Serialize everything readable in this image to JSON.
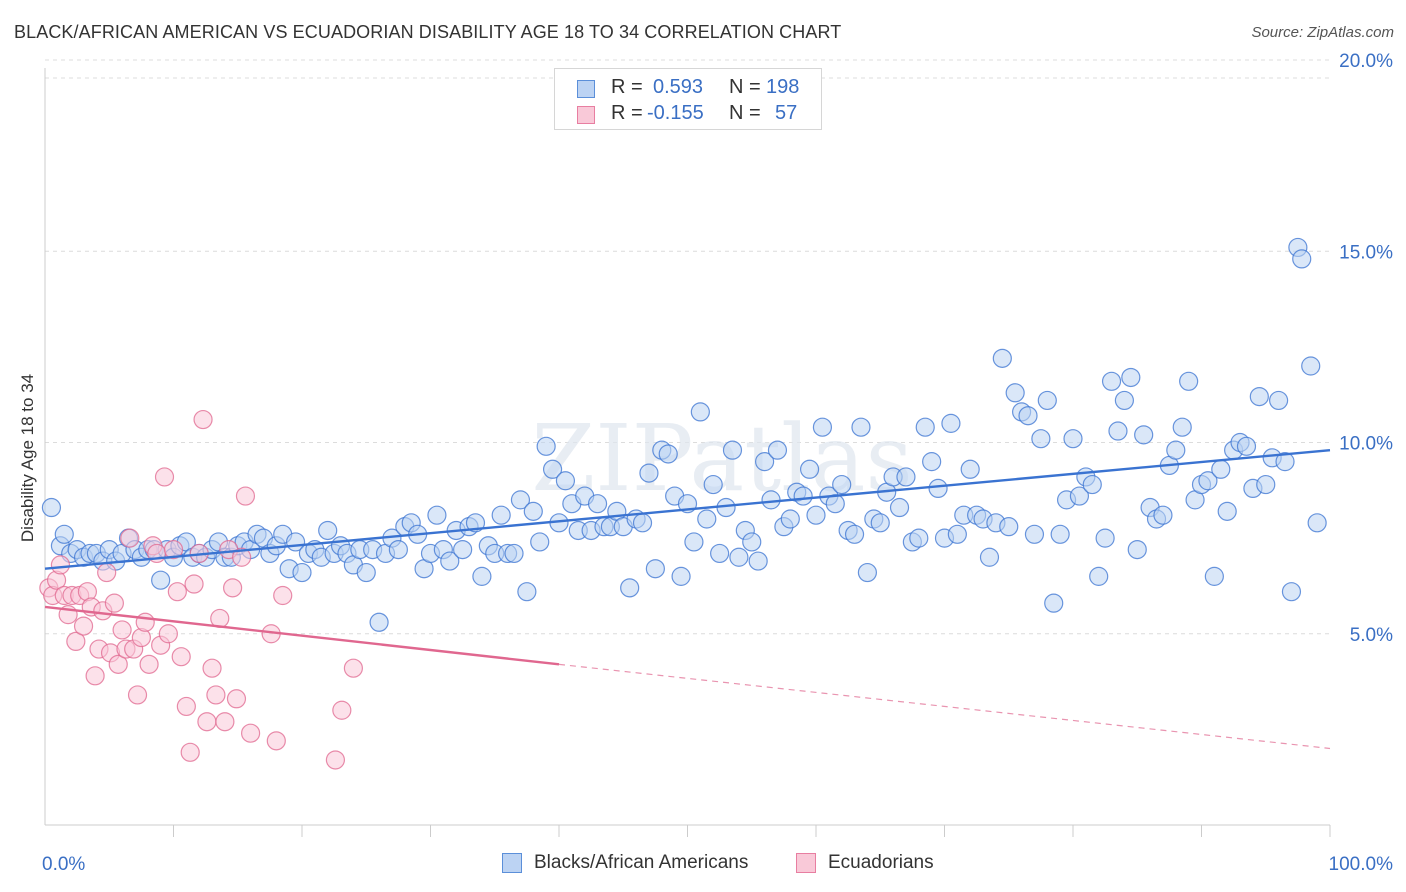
{
  "title": "BLACK/AFRICAN AMERICAN VS ECUADORIAN DISABILITY AGE 18 TO 34 CORRELATION CHART",
  "source": "Source: ZipAtlas.com",
  "watermark": "ZIPatlas",
  "stats": {
    "rows": [
      {
        "r_label": "R =",
        "r_value": "0.593",
        "n_label": "N =",
        "n_value": "198",
        "color": "#5b8fd9",
        "fill": "#bcd3f3"
      },
      {
        "r_label": "R =",
        "r_value": "-0.155",
        "n_label": "N =",
        "n_value": "57",
        "color": "#e87ea1",
        "fill": "#f9c9d8"
      }
    ]
  },
  "legend": [
    {
      "label": "Blacks/African Americans",
      "color": "#5b8fd9",
      "fill": "#bcd3f3"
    },
    {
      "label": "Ecuadorians",
      "color": "#e87ea1",
      "fill": "#f9c9d8"
    }
  ],
  "chart_data": {
    "type": "scatter",
    "ylabel": "Disability Age 18 to 34",
    "xlabel": "",
    "xlim": [
      0,
      100
    ],
    "ylim": [
      0,
      20.5
    ],
    "x_tick_labels": [
      "0.0%",
      "100.0%"
    ],
    "y_tick_labels": [
      "5.0%",
      "10.0%",
      "15.0%",
      "20.0%"
    ],
    "y_ticks": [
      5,
      10,
      15,
      20
    ],
    "grid": "horizontal dashed",
    "legend_position": "bottom-center",
    "series": [
      {
        "name": "Blacks/African Americans",
        "color": "#3a73d1",
        "fill": "#bcd3f3",
        "trend": {
          "x0": 0,
          "y0": 6.7,
          "x1": 100,
          "y1": 9.8
        },
        "points": [
          [
            0.5,
            8.3
          ],
          [
            1.2,
            7.3
          ],
          [
            1.5,
            7.6
          ],
          [
            2.0,
            7.1
          ],
          [
            2.5,
            7.2
          ],
          [
            3.0,
            7.0
          ],
          [
            3.5,
            7.1
          ],
          [
            4.0,
            7.1
          ],
          [
            4.5,
            6.9
          ],
          [
            5.0,
            7.2
          ],
          [
            5.5,
            6.9
          ],
          [
            6.0,
            7.1
          ],
          [
            6.5,
            7.5
          ],
          [
            7.0,
            7.2
          ],
          [
            7.5,
            7.0
          ],
          [
            8.0,
            7.2
          ],
          [
            8.5,
            7.2
          ],
          [
            9.0,
            6.4
          ],
          [
            9.5,
            7.2
          ],
          [
            10.0,
            7.0
          ],
          [
            10.5,
            7.3
          ],
          [
            11.0,
            7.4
          ],
          [
            11.5,
            7.0
          ],
          [
            12.0,
            7.1
          ],
          [
            12.5,
            7.0
          ],
          [
            13.0,
            7.2
          ],
          [
            13.5,
            7.4
          ],
          [
            14.0,
            7.0
          ],
          [
            14.5,
            7.0
          ],
          [
            15.0,
            7.3
          ],
          [
            15.5,
            7.4
          ],
          [
            16.0,
            7.2
          ],
          [
            16.5,
            7.6
          ],
          [
            17.0,
            7.5
          ],
          [
            17.5,
            7.1
          ],
          [
            18.0,
            7.3
          ],
          [
            18.5,
            7.6
          ],
          [
            19.0,
            6.7
          ],
          [
            19.5,
            7.4
          ],
          [
            20.0,
            6.6
          ],
          [
            20.5,
            7.1
          ],
          [
            21.0,
            7.2
          ],
          [
            21.5,
            7.0
          ],
          [
            22.0,
            7.7
          ],
          [
            22.5,
            7.1
          ],
          [
            23.0,
            7.3
          ],
          [
            23.5,
            7.1
          ],
          [
            24.0,
            6.8
          ],
          [
            24.5,
            7.2
          ],
          [
            25.0,
            6.6
          ],
          [
            25.5,
            7.2
          ],
          [
            26.0,
            5.3
          ],
          [
            26.5,
            7.1
          ],
          [
            27.0,
            7.5
          ],
          [
            27.5,
            7.2
          ],
          [
            28.0,
            7.8
          ],
          [
            28.5,
            7.9
          ],
          [
            29.0,
            7.6
          ],
          [
            29.5,
            6.7
          ],
          [
            30.0,
            7.1
          ],
          [
            30.5,
            8.1
          ],
          [
            31.0,
            7.2
          ],
          [
            31.5,
            6.9
          ],
          [
            32.0,
            7.7
          ],
          [
            32.5,
            7.2
          ],
          [
            33.0,
            7.8
          ],
          [
            33.5,
            7.9
          ],
          [
            34.0,
            6.5
          ],
          [
            34.5,
            7.3
          ],
          [
            35.0,
            7.1
          ],
          [
            35.5,
            8.1
          ],
          [
            36.0,
            7.1
          ],
          [
            36.5,
            7.1
          ],
          [
            37.0,
            8.5
          ],
          [
            37.5,
            6.1
          ],
          [
            38.0,
            8.2
          ],
          [
            38.5,
            7.4
          ],
          [
            39.0,
            9.9
          ],
          [
            39.5,
            9.3
          ],
          [
            40.0,
            7.9
          ],
          [
            40.5,
            9.0
          ],
          [
            41.0,
            8.4
          ],
          [
            41.5,
            7.7
          ],
          [
            42.0,
            8.6
          ],
          [
            42.5,
            7.7
          ],
          [
            43.0,
            8.4
          ],
          [
            43.5,
            7.8
          ],
          [
            44.0,
            7.8
          ],
          [
            44.5,
            8.2
          ],
          [
            45.0,
            7.8
          ],
          [
            45.5,
            6.2
          ],
          [
            46.0,
            8.0
          ],
          [
            46.5,
            7.9
          ],
          [
            47.0,
            9.2
          ],
          [
            47.5,
            6.7
          ],
          [
            48.0,
            9.8
          ],
          [
            48.5,
            9.7
          ],
          [
            49.0,
            8.6
          ],
          [
            49.5,
            6.5
          ],
          [
            50.0,
            8.4
          ],
          [
            50.5,
            7.4
          ],
          [
            51.0,
            10.8
          ],
          [
            51.5,
            8.0
          ],
          [
            52.0,
            8.9
          ],
          [
            52.5,
            7.1
          ],
          [
            53.0,
            8.3
          ],
          [
            53.5,
            9.8
          ],
          [
            54.0,
            7.0
          ],
          [
            54.5,
            7.7
          ],
          [
            55.0,
            7.4
          ],
          [
            55.5,
            6.9
          ],
          [
            56.0,
            9.5
          ],
          [
            56.5,
            8.5
          ],
          [
            57.0,
            9.8
          ],
          [
            57.5,
            7.8
          ],
          [
            58.0,
            8.0
          ],
          [
            58.5,
            8.7
          ],
          [
            59.0,
            8.6
          ],
          [
            59.5,
            9.3
          ],
          [
            60.0,
            8.1
          ],
          [
            60.5,
            10.4
          ],
          [
            61.0,
            8.6
          ],
          [
            61.5,
            8.4
          ],
          [
            62.0,
            8.9
          ],
          [
            62.5,
            7.7
          ],
          [
            63.0,
            7.6
          ],
          [
            63.5,
            10.4
          ],
          [
            64.0,
            6.6
          ],
          [
            64.5,
            8.0
          ],
          [
            65.0,
            7.9
          ],
          [
            65.5,
            8.7
          ],
          [
            66.0,
            9.1
          ],
          [
            66.5,
            8.3
          ],
          [
            67.0,
            9.1
          ],
          [
            67.5,
            7.4
          ],
          [
            68.0,
            7.5
          ],
          [
            68.5,
            10.4
          ],
          [
            69.0,
            9.5
          ],
          [
            69.5,
            8.8
          ],
          [
            70.0,
            7.5
          ],
          [
            70.5,
            10.5
          ],
          [
            71.0,
            7.6
          ],
          [
            71.5,
            8.1
          ],
          [
            72.0,
            9.3
          ],
          [
            72.5,
            8.1
          ],
          [
            73.0,
            8.0
          ],
          [
            73.5,
            7.0
          ],
          [
            74.0,
            7.9
          ],
          [
            74.5,
            12.2
          ],
          [
            75.0,
            7.8
          ],
          [
            75.5,
            11.3
          ],
          [
            76.0,
            10.8
          ],
          [
            76.5,
            10.7
          ],
          [
            77.0,
            7.6
          ],
          [
            77.5,
            10.1
          ],
          [
            78.0,
            11.1
          ],
          [
            78.5,
            5.8
          ],
          [
            79.0,
            7.6
          ],
          [
            79.5,
            8.5
          ],
          [
            80.0,
            10.1
          ],
          [
            80.5,
            8.6
          ],
          [
            81.0,
            9.1
          ],
          [
            81.5,
            8.9
          ],
          [
            82.0,
            6.5
          ],
          [
            82.5,
            7.5
          ],
          [
            83.0,
            11.6
          ],
          [
            83.5,
            10.3
          ],
          [
            84.0,
            11.1
          ],
          [
            84.5,
            11.7
          ],
          [
            85.0,
            7.2
          ],
          [
            85.5,
            10.2
          ],
          [
            86.0,
            8.3
          ],
          [
            86.5,
            8.0
          ],
          [
            87.0,
            8.1
          ],
          [
            87.5,
            9.4
          ],
          [
            88.0,
            9.8
          ],
          [
            88.5,
            10.4
          ],
          [
            89.0,
            11.6
          ],
          [
            89.5,
            8.5
          ],
          [
            90.0,
            8.9
          ],
          [
            90.5,
            9.0
          ],
          [
            91.0,
            6.5
          ],
          [
            91.5,
            9.3
          ],
          [
            92.0,
            8.2
          ],
          [
            92.5,
            9.8
          ],
          [
            93.0,
            10.0
          ],
          [
            93.5,
            9.9
          ],
          [
            94.0,
            8.8
          ],
          [
            94.5,
            11.2
          ],
          [
            95.0,
            8.9
          ],
          [
            95.5,
            9.6
          ],
          [
            96.0,
            11.1
          ],
          [
            96.5,
            9.5
          ],
          [
            97.0,
            6.1
          ],
          [
            97.5,
            15.1
          ],
          [
            97.8,
            14.8
          ],
          [
            98.5,
            12.0
          ],
          [
            99.0,
            7.9
          ]
        ]
      },
      {
        "name": "Ecuadorians",
        "color": "#e0678f",
        "fill": "#f9c9d8",
        "trend": {
          "x0": 0,
          "y0": 5.7,
          "x1": 40,
          "y1": 4.2
        },
        "trend_extended": {
          "x0": 40,
          "y0": 4.2,
          "x1": 100,
          "y1": 2.0
        },
        "points": [
          [
            0.3,
            6.2
          ],
          [
            0.6,
            6.0
          ],
          [
            0.9,
            6.4
          ],
          [
            1.2,
            6.8
          ],
          [
            1.5,
            6.0
          ],
          [
            1.8,
            5.5
          ],
          [
            2.1,
            6.0
          ],
          [
            2.4,
            4.8
          ],
          [
            2.7,
            6.0
          ],
          [
            3.0,
            5.2
          ],
          [
            3.3,
            6.1
          ],
          [
            3.6,
            5.7
          ],
          [
            3.9,
            3.9
          ],
          [
            4.2,
            4.6
          ],
          [
            4.5,
            5.6
          ],
          [
            4.8,
            6.6
          ],
          [
            5.1,
            4.5
          ],
          [
            5.4,
            5.8
          ],
          [
            5.7,
            4.2
          ],
          [
            6.0,
            5.1
          ],
          [
            6.3,
            4.6
          ],
          [
            6.6,
            7.5
          ],
          [
            6.9,
            4.6
          ],
          [
            7.2,
            3.4
          ],
          [
            7.5,
            4.9
          ],
          [
            7.8,
            5.3
          ],
          [
            8.1,
            4.2
          ],
          [
            8.4,
            7.3
          ],
          [
            8.7,
            7.1
          ],
          [
            9.0,
            4.7
          ],
          [
            9.3,
            9.1
          ],
          [
            9.6,
            5.0
          ],
          [
            10.0,
            7.2
          ],
          [
            10.3,
            6.1
          ],
          [
            10.6,
            4.4
          ],
          [
            11.0,
            3.1
          ],
          [
            11.3,
            1.9
          ],
          [
            11.6,
            6.3
          ],
          [
            12.0,
            7.1
          ],
          [
            12.3,
            10.6
          ],
          [
            12.6,
            2.7
          ],
          [
            13.0,
            4.1
          ],
          [
            13.3,
            3.4
          ],
          [
            13.6,
            5.4
          ],
          [
            14.0,
            2.7
          ],
          [
            14.3,
            7.2
          ],
          [
            14.6,
            6.2
          ],
          [
            14.9,
            3.3
          ],
          [
            15.3,
            7.0
          ],
          [
            15.6,
            8.6
          ],
          [
            16.0,
            2.4
          ],
          [
            17.6,
            5.0
          ],
          [
            18.0,
            2.2
          ],
          [
            18.5,
            6.0
          ],
          [
            22.6,
            1.7
          ],
          [
            23.1,
            3.0
          ],
          [
            24.0,
            4.1
          ]
        ]
      }
    ]
  }
}
